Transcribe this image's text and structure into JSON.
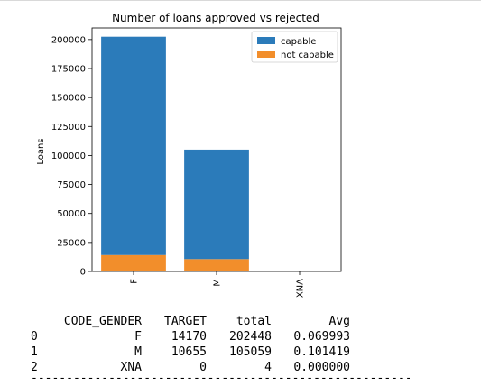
{
  "chart_data": {
    "type": "bar",
    "stacked": true,
    "title": "Number of loans approved vs rejected",
    "xlabel": "",
    "ylabel": "Loans",
    "categories": [
      "F",
      "M",
      "XNA"
    ],
    "series": [
      {
        "name": "capable",
        "values": [
          188278,
          94404,
          4
        ],
        "color": "#2b7bba"
      },
      {
        "name": "not capable",
        "values": [
          14170,
          10655,
          0
        ],
        "color": "#f28e2b"
      }
    ],
    "ylim": [
      0,
      210000
    ],
    "yticks": [
      0,
      25000,
      50000,
      75000,
      100000,
      125000,
      150000,
      175000,
      200000
    ],
    "legend": "top-right",
    "grid": false
  },
  "table": {
    "columns": [
      "",
      "CODE_GENDER",
      "TARGET",
      "total",
      "Avg"
    ],
    "rows": [
      [
        "0",
        "F",
        "14170",
        "202448",
        "0.069993"
      ],
      [
        "1",
        "M",
        "10655",
        "105059",
        "0.101419"
      ],
      [
        "2",
        "XNA",
        "0",
        "4",
        "0.000000"
      ]
    ],
    "separator": "------------------------------------------------------------"
  }
}
